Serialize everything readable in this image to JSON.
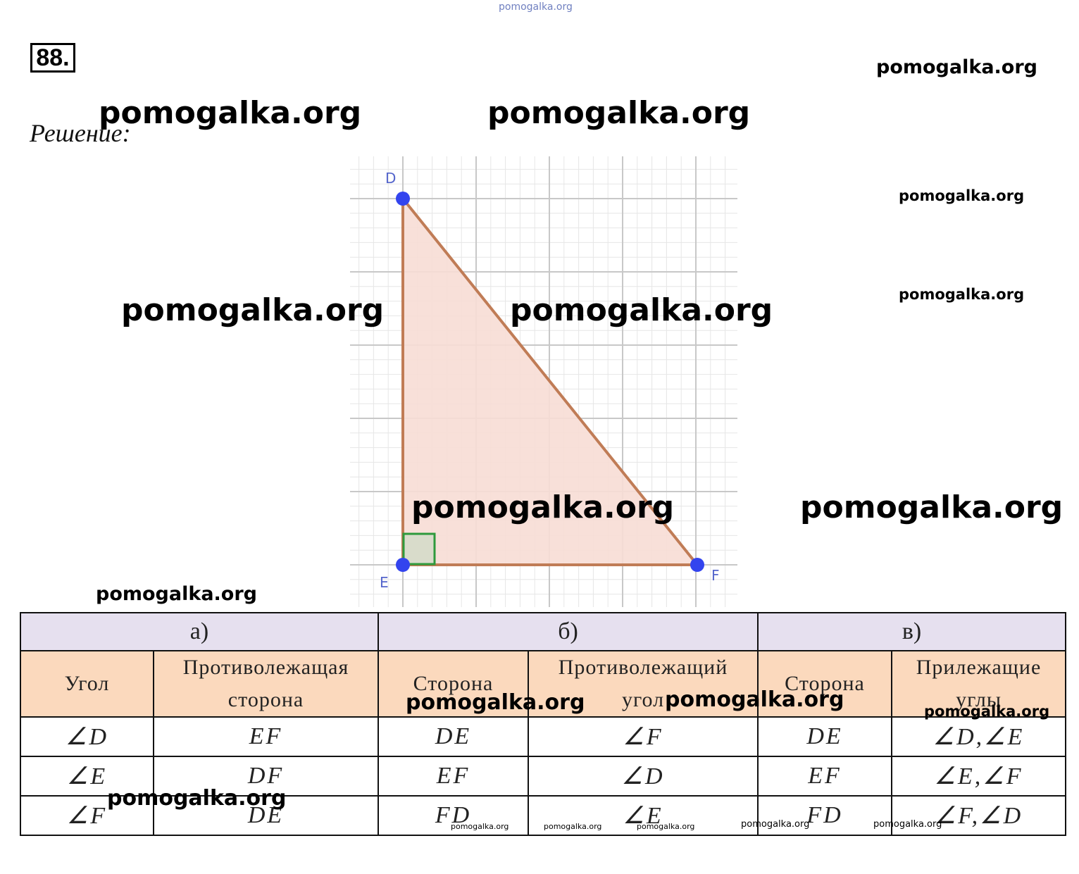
{
  "problem": {
    "number": "88.",
    "solution_label": "Решение:"
  },
  "graph": {
    "vertices": {
      "D": "D",
      "E": "E",
      "F": "F"
    },
    "colors": {
      "triangle_fill": "#f7ddd5",
      "triangle_stroke": "#c07c56",
      "point": "#3344ee",
      "right_angle": "#2e9a3c",
      "grid": "#d8d8d8"
    }
  },
  "watermark": "pomogalka.org",
  "table": {
    "groups": [
      "а)",
      "б)",
      "в)"
    ],
    "headers": [
      [
        "Угол",
        "Противолежащая",
        "сторона"
      ],
      [
        "Сторона",
        ""
      ],
      [
        "Противолежащий",
        "угол"
      ],
      [
        "Сторона",
        ""
      ],
      [
        "Прилежащие",
        "углы"
      ]
    ],
    "rows": [
      [
        "∠D",
        "EF",
        "DE",
        "∠F",
        "DE",
        "∠D,∠E"
      ],
      [
        "∠E",
        "DF",
        "EF",
        "∠D",
        "EF",
        "∠E,∠F"
      ],
      [
        "∠F",
        "DE",
        "FD",
        "∠E",
        "FD",
        "∠F,∠D"
      ]
    ]
  }
}
